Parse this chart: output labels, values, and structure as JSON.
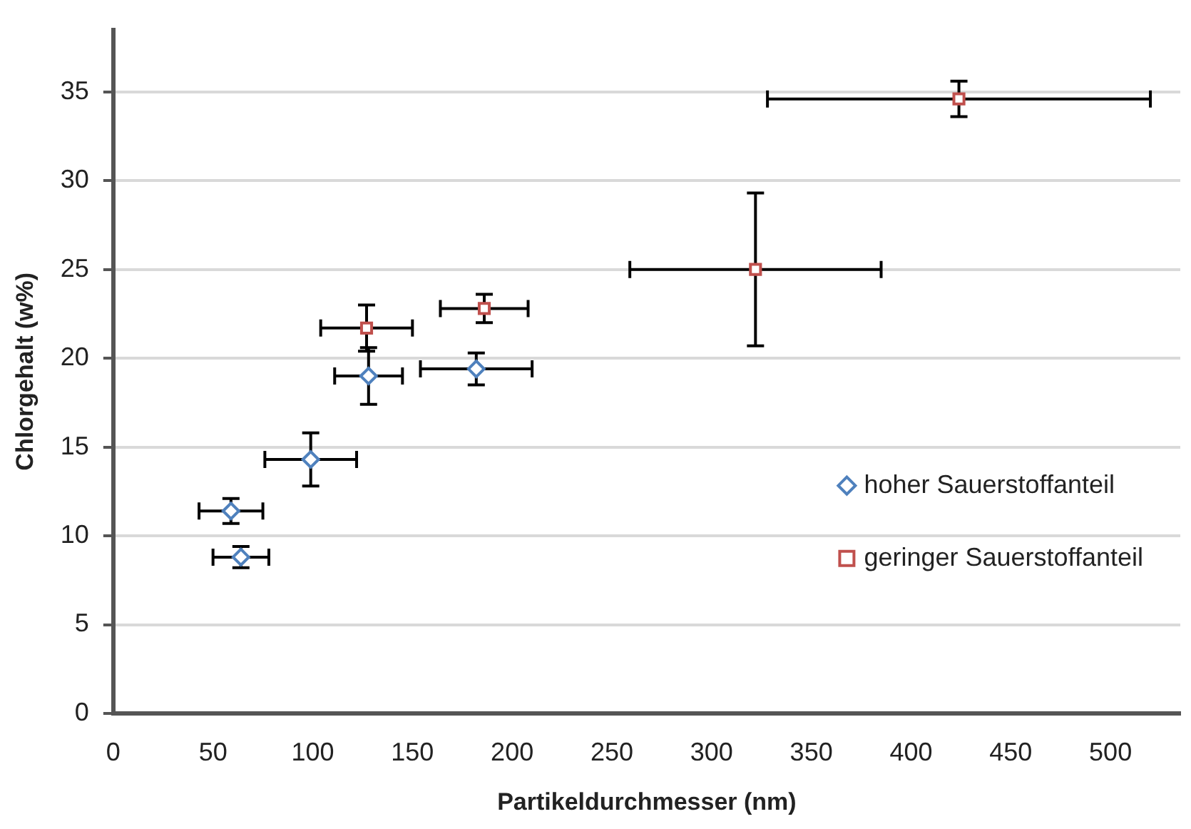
{
  "chart_data": {
    "type": "scatter",
    "xlabel": "Partikeldurchmesser (nm)",
    "ylabel": "Chlorgehalt (w%)",
    "xlim": [
      0,
      535
    ],
    "xticks": [
      0,
      50,
      100,
      150,
      200,
      250,
      300,
      350,
      400,
      450,
      500
    ],
    "ylim": [
      0,
      38.5
    ],
    "yticks": [
      0,
      5,
      10,
      15,
      20,
      25,
      30,
      35
    ],
    "grid": "y",
    "legend": "right",
    "series": [
      {
        "name": "hoher Sauerstoffanteil",
        "color": "#4f81bd",
        "marker": "diamond",
        "x": [
          99,
          59,
          64,
          128,
          182
        ],
        "values": [
          14.3,
          11.4,
          8.8,
          19.0,
          19.4
        ],
        "xerrors": [
          23,
          16,
          14,
          17,
          28
        ],
        "errors": [
          1.5,
          0.7,
          0.6,
          1.6,
          0.9
        ]
      },
      {
        "name": "geringer Sauerstoffanteil",
        "color": "#c0504d",
        "marker": "square",
        "x": [
          127,
          186,
          322,
          424
        ],
        "values": [
          21.7,
          22.8,
          25.0,
          34.6
        ],
        "xerrors": [
          23,
          22,
          63,
          96
        ],
        "errors": [
          1.3,
          0.8,
          4.3,
          1.0
        ]
      }
    ]
  }
}
